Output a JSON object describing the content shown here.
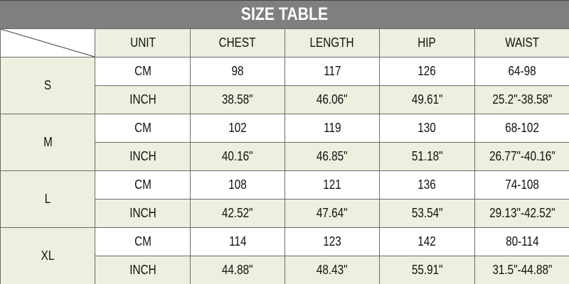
{
  "title": "SIZE TABLE",
  "colors": {
    "title_bar": "#7f7f7f",
    "title_text": "#ffffff",
    "shaded_cell": "#ebf1de",
    "plain_cell": "#ffffff",
    "border": "#6b6b6b"
  },
  "headers": [
    "UNIT",
    "CHEST",
    "LENGTH",
    "HIP",
    "WAIST"
  ],
  "sizes": [
    {
      "size": "S",
      "rows": [
        {
          "unit": "CM",
          "chest": "98",
          "length": "117",
          "hip": "126",
          "waist": "64-98"
        },
        {
          "unit": "INCH",
          "chest": "38.58\"",
          "length": "46.06\"",
          "hip": "49.61\"",
          "waist": "25.2\"-38.58\""
        }
      ]
    },
    {
      "size": "M",
      "rows": [
        {
          "unit": "CM",
          "chest": "102",
          "length": "119",
          "hip": "130",
          "waist": "68-102"
        },
        {
          "unit": "INCH",
          "chest": "40.16\"",
          "length": "46.85\"",
          "hip": "51.18\"",
          "waist": "26.77\"-40.16\""
        }
      ]
    },
    {
      "size": "L",
      "rows": [
        {
          "unit": "CM",
          "chest": "108",
          "length": "121",
          "hip": "136",
          "waist": "74-108"
        },
        {
          "unit": "INCH",
          "chest": "42.52\"",
          "length": "47.64\"",
          "hip": "53.54\"",
          "waist": "29.13\"-42.52\""
        }
      ]
    },
    {
      "size": "XL",
      "rows": [
        {
          "unit": "CM",
          "chest": "114",
          "length": "123",
          "hip": "142",
          "waist": "80-114"
        },
        {
          "unit": "INCH",
          "chest": "44.88\"",
          "length": "48.43\"",
          "hip": "55.91\"",
          "waist": "31.5\"-44.88\""
        }
      ]
    }
  ]
}
